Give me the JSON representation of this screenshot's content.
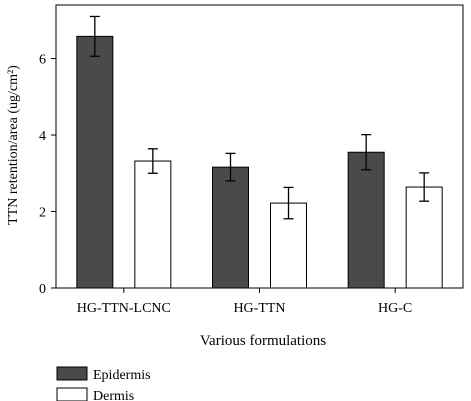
{
  "chart_data": {
    "type": "bar",
    "categories": [
      "HG-TTN-LCNC",
      "HG-TTN",
      "HG-C"
    ],
    "series": [
      {
        "name": "Epidermis",
        "values": [
          6.58,
          3.16,
          3.55
        ],
        "errors": [
          0.52,
          0.36,
          0.46
        ],
        "color": "#4a4a4a"
      },
      {
        "name": "Dermis",
        "values": [
          3.32,
          2.22,
          2.64
        ],
        "errors": [
          0.32,
          0.41,
          0.37
        ],
        "color": "#ffffff"
      }
    ],
    "xlabel": "Various formulations",
    "ylabel": "TTN retention/area (ug/cm²)",
    "ylim": [
      0,
      7.4
    ],
    "yticks": [
      0,
      2,
      4,
      6
    ],
    "legend_position": "bottom-left",
    "grid": false
  }
}
